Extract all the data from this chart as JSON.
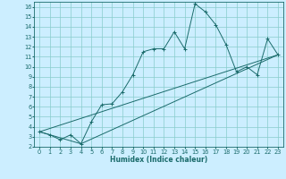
{
  "xlabel": "Humidex (Indice chaleur)",
  "bg_color": "#cceeff",
  "grid_color": "#88cccc",
  "line_color": "#1a6b6b",
  "xlim": [
    -0.5,
    23.5
  ],
  "ylim": [
    2,
    16.5
  ],
  "xticks": [
    0,
    1,
    2,
    3,
    4,
    5,
    6,
    7,
    8,
    9,
    10,
    11,
    12,
    13,
    14,
    15,
    16,
    17,
    18,
    19,
    20,
    21,
    22,
    23
  ],
  "yticks": [
    2,
    3,
    4,
    5,
    6,
    7,
    8,
    9,
    10,
    11,
    12,
    13,
    14,
    15,
    16
  ],
  "line1_x": [
    0,
    1,
    2,
    3,
    4,
    5,
    6,
    7,
    8,
    9,
    10,
    11,
    12,
    13,
    14,
    15,
    16,
    17,
    18,
    19,
    20,
    21,
    22,
    23
  ],
  "line1_y": [
    3.5,
    3.2,
    2.7,
    3.2,
    2.3,
    4.5,
    6.2,
    6.3,
    7.5,
    9.2,
    11.5,
    11.8,
    11.8,
    13.5,
    11.8,
    16.3,
    15.5,
    14.2,
    12.2,
    9.5,
    10.0,
    9.2,
    12.8,
    11.2
  ],
  "line2_x": [
    0,
    23
  ],
  "line2_y": [
    3.5,
    11.2
  ],
  "line3_x": [
    0,
    4,
    23
  ],
  "line3_y": [
    3.5,
    2.3,
    11.2
  ],
  "xlabel_fontsize": 5.5,
  "tick_fontsize": 4.8
}
